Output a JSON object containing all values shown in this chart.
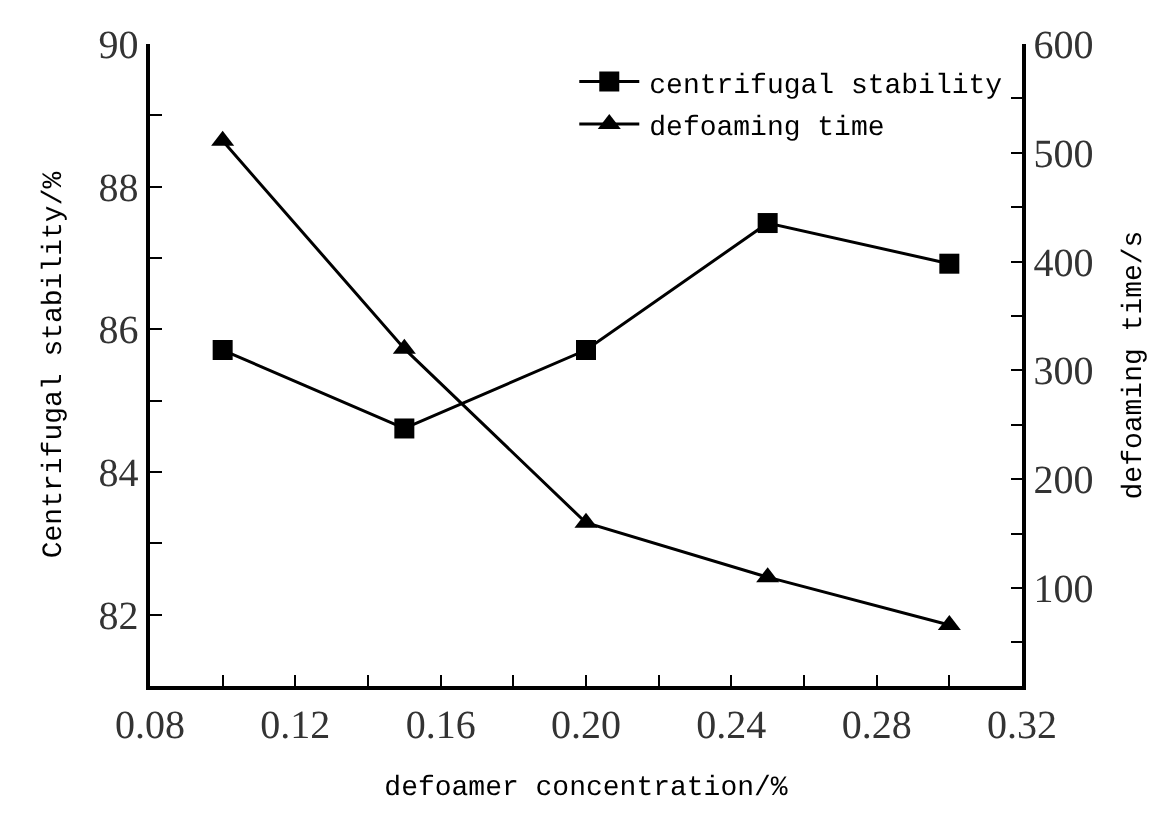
{
  "chart_data": {
    "type": "line",
    "xlabel": "defoamer concentration/%",
    "ylabel": "Centrifugal stability/%",
    "y2label": "defoaming time/s",
    "x": [
      0.1,
      0.15,
      0.2,
      0.25,
      0.3
    ],
    "series": [
      {
        "name": "centrifugal stability",
        "color": "#000000",
        "marker": "square",
        "values": [
          85.71,
          84.61,
          85.71,
          87.49,
          86.92
        ]
      },
      {
        "name": "defoaming time",
        "color": "#000000",
        "marker": "triangle",
        "axis": "y2",
        "values": [
          511,
          320,
          160,
          110,
          66
        ]
      }
    ],
    "xlim": [
      0.08,
      0.32
    ],
    "xticks": [
      {
        "value": 0.08,
        "label": "0.08"
      },
      {
        "value": 0.1,
        "label": null
      },
      {
        "value": 0.12,
        "label": "0.12"
      },
      {
        "value": 0.14,
        "label": null
      },
      {
        "value": 0.16,
        "label": "0.16"
      },
      {
        "value": 0.18,
        "label": null
      },
      {
        "value": 0.2,
        "label": "0.20"
      },
      {
        "value": 0.22,
        "label": null
      },
      {
        "value": 0.24,
        "label": "0.24"
      },
      {
        "value": 0.26,
        "label": null
      },
      {
        "value": 0.28,
        "label": "0.28"
      },
      {
        "value": 0.3,
        "label": null
      },
      {
        "value": 0.32,
        "label": "0.32"
      }
    ],
    "ylim": [
      81,
      90
    ],
    "yticks": [
      82,
      {
        "value": 83,
        "label": null
      },
      84,
      {
        "value": 85,
        "label": null
      },
      86,
      {
        "value": 87,
        "label": null
      },
      88,
      {
        "value": 89,
        "label": null
      },
      90
    ],
    "y2lim": [
      10,
      600
    ],
    "y2ticks": [
      {
        "value": 50,
        "label": null
      },
      100,
      {
        "value": 150,
        "label": null
      },
      200,
      {
        "value": 250,
        "label": null
      },
      300,
      {
        "value": 350,
        "label": null
      },
      400,
      {
        "value": 450,
        "label": null
      },
      500,
      {
        "value": 550,
        "label": null
      },
      600
    ],
    "line_style": "solid",
    "legend": "top right"
  }
}
